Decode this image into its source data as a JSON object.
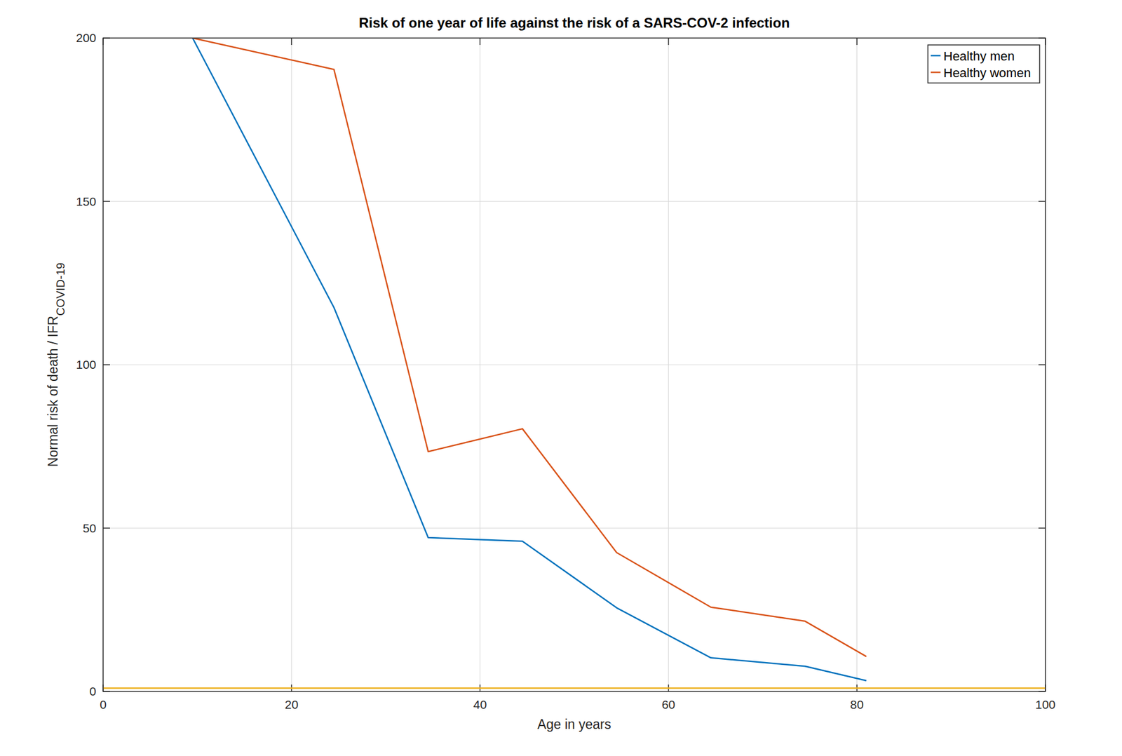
{
  "chart_data": {
    "type": "line",
    "title": "Risk of one year of life against the risk of a SARS-COV-2 infection",
    "xlabel": "Age in years",
    "ylabel": "Normal risk of death / IFR",
    "ylabel_sub": "COVID-19",
    "xlim": [
      0,
      100
    ],
    "ylim": [
      0,
      200
    ],
    "xticks": [
      0,
      20,
      40,
      60,
      80,
      100
    ],
    "yticks": [
      0,
      50,
      100,
      150,
      200
    ],
    "grid": true,
    "legend": "top-right",
    "series": [
      {
        "name": "Healthy men",
        "color": "#0072bd",
        "x": [
          9.5,
          24.5,
          34.5,
          44.5,
          54.5,
          64.5,
          74.5,
          81
        ],
        "values": [
          200,
          117.5,
          47.1,
          46.0,
          25.6,
          10.3,
          7.7,
          3.3
        ]
      },
      {
        "name": "Healthy women",
        "color": "#d95319",
        "x": [
          9.5,
          24.5,
          34.5,
          44.5,
          54.5,
          64.5,
          74.5,
          81
        ],
        "values": [
          200,
          190.4,
          73.4,
          80.4,
          42.5,
          25.8,
          21.5,
          10.7
        ]
      },
      {
        "color": "#edb120",
        "x": [
          0,
          100
        ],
        "values": [
          1,
          1
        ]
      }
    ]
  }
}
